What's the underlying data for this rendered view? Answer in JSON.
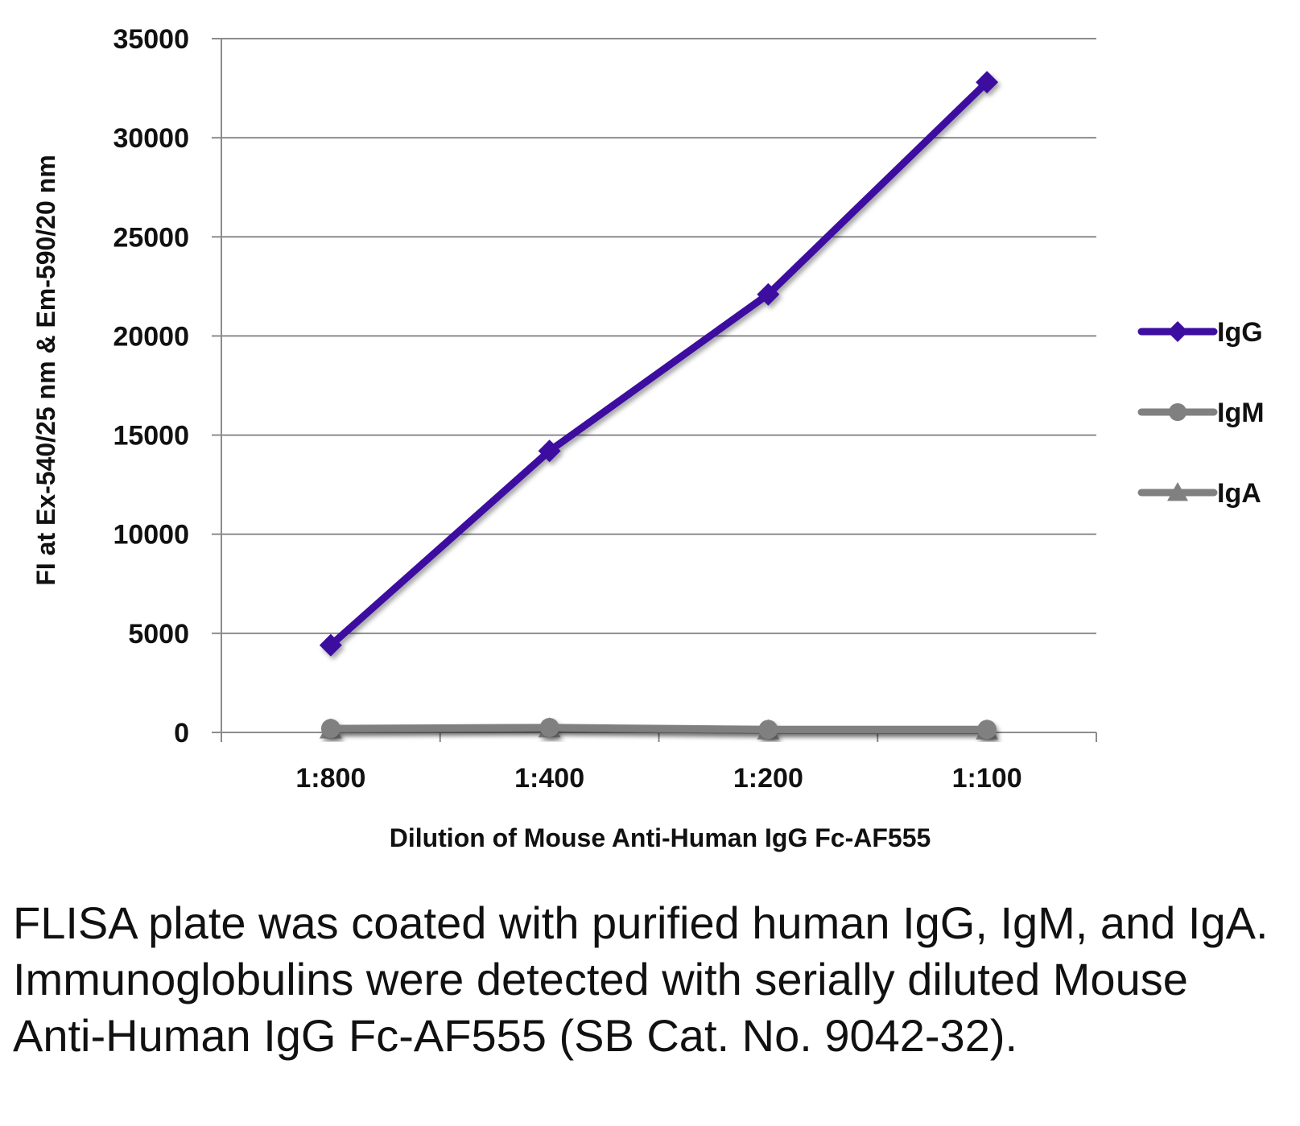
{
  "chart_data": {
    "type": "line",
    "title": "",
    "xlabel": "Dilution of Mouse Anti-Human IgG Fc-AF555",
    "ylabel": "FI at Ex-540/25 nm & Em-590/20 nm",
    "categories": [
      "1:800",
      "1:400",
      "1:200",
      "1:100"
    ],
    "ylim": [
      0,
      35000
    ],
    "yticks": [
      0,
      5000,
      10000,
      15000,
      20000,
      25000,
      30000,
      35000
    ],
    "grid": "horizontal",
    "legend_position": "right",
    "series": [
      {
        "name": "IgG",
        "values": [
          4400,
          14200,
          22100,
          32800
        ],
        "color": "#3d0fa0",
        "marker": "diamond"
      },
      {
        "name": "IgM",
        "values": [
          200,
          250,
          150,
          150
        ],
        "color": "#808080",
        "marker": "circle"
      },
      {
        "name": "IgA",
        "values": [
          150,
          200,
          100,
          100
        ],
        "color": "#808080",
        "marker": "triangle"
      }
    ]
  },
  "caption": "FLISA plate was coated with purified human IgG, IgM, and IgA.  Immunoglobulins were detected with serially diluted Mouse Anti-Human IgG Fc-AF555 (SB Cat. No. 9042-32)."
}
